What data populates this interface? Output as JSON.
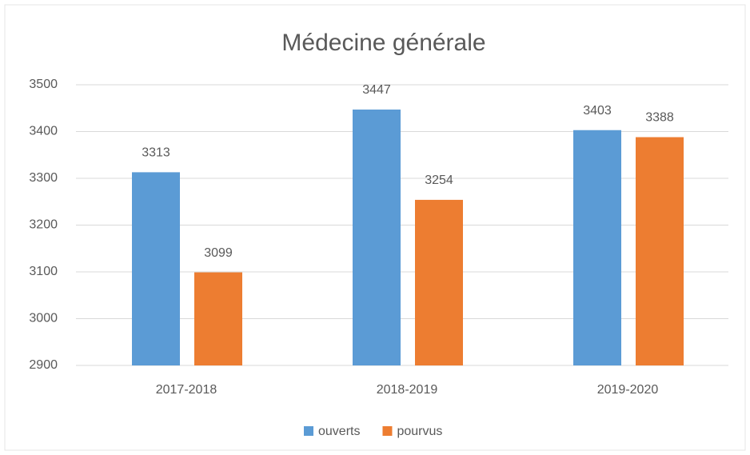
{
  "chart_data": {
    "type": "bar",
    "title": "Médecine générale",
    "categories": [
      "2017-2018",
      "2018-2019",
      "2019-2020"
    ],
    "series": [
      {
        "name": "ouverts",
        "color": "#5b9bd5",
        "values": [
          3313,
          3447,
          3403
        ]
      },
      {
        "name": "pourvus",
        "color": "#ed7d31",
        "values": [
          3099,
          3254,
          3388
        ]
      }
    ],
    "ylim": [
      2900,
      3500
    ],
    "yticks": [
      2900,
      3000,
      3100,
      3200,
      3300,
      3400,
      3500
    ],
    "grid": true,
    "legend": "bottom"
  }
}
